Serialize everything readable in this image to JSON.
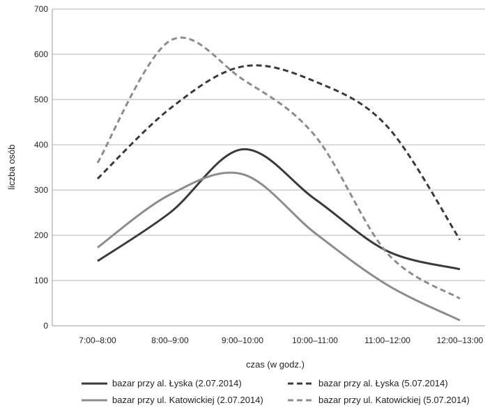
{
  "chart_data": {
    "type": "line",
    "title": "",
    "xlabel": "czas (w godz.)",
    "ylabel": "liczba osób",
    "ylim": [
      0,
      700
    ],
    "yticks": [
      0,
      100,
      200,
      300,
      400,
      500,
      600,
      700
    ],
    "grid": "horizontal",
    "legend_position": "bottom",
    "categories": [
      "7:00–8:00",
      "8:00–9:00",
      "9:00–10:00",
      "10:00–11:00",
      "11:00–12:00",
      "12:00–13:00"
    ],
    "series": [
      {
        "name": "bazar przy al. Łyska (2.07.2014)",
        "values": [
          143,
          250,
          390,
          280,
          165,
          125
        ],
        "color": "#3a3a3a",
        "dashed": false
      },
      {
        "name": "bazar przy al. Łyska (5.07.2014)",
        "values": [
          325,
          480,
          573,
          540,
          440,
          190
        ],
        "color": "#3a3a3a",
        "dashed": true
      },
      {
        "name": "bazar przy ul. Katowickiej (2.07.2014)",
        "values": [
          173,
          290,
          335,
          205,
          90,
          12
        ],
        "color": "#8c8c8c",
        "dashed": false
      },
      {
        "name": "bazar przy ul. Katowickiej (5.07.2014)",
        "values": [
          360,
          630,
          545,
          420,
          160,
          60
        ],
        "color": "#8c8c8c",
        "dashed": true
      }
    ]
  }
}
